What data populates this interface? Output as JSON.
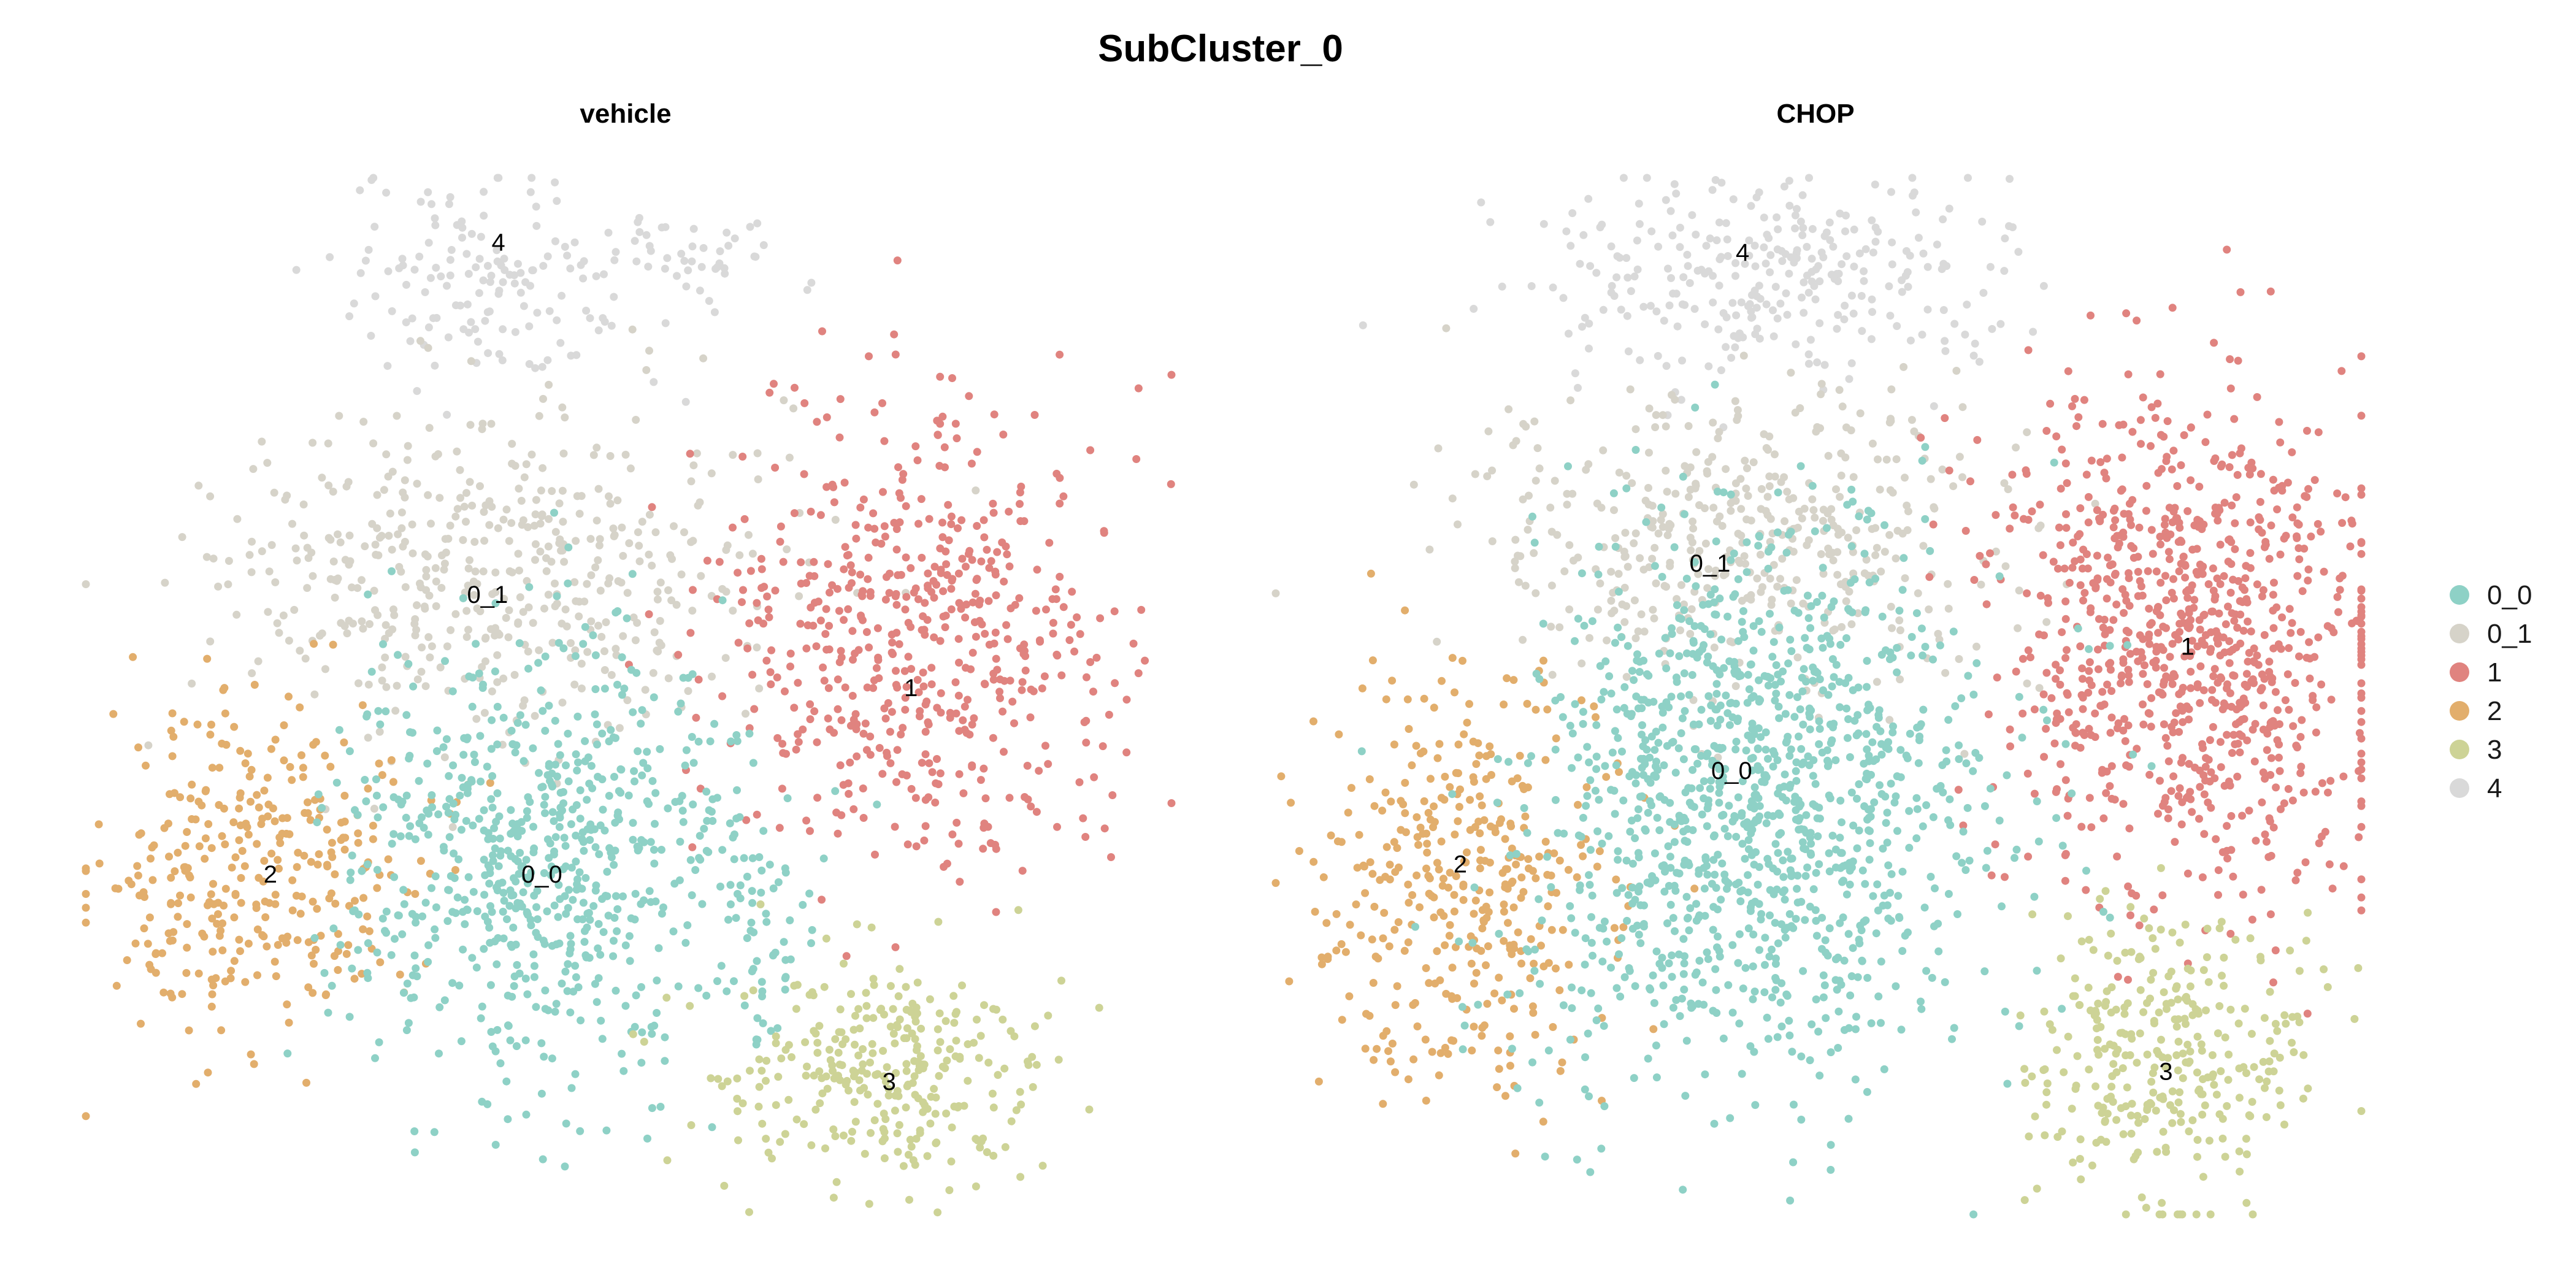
{
  "chart_data": {
    "type": "scatter",
    "title": "SubCluster_0",
    "xlabel": "",
    "ylabel": "",
    "grid": false,
    "axes_visible": false,
    "legend_position": "right",
    "clusters": [
      {
        "name": "0_0",
        "color": "#8ED1C6"
      },
      {
        "name": "0_1",
        "color": "#D6D3C9"
      },
      {
        "name": "1",
        "color": "#E0837F"
      },
      {
        "name": "2",
        "color": "#E2AE6C"
      },
      {
        "name": "3",
        "color": "#CDD396"
      },
      {
        "name": "4",
        "color": "#D9D9D9"
      }
    ],
    "panels": [
      {
        "title": "vehicle",
        "cluster_labels": [
          {
            "text": "4",
            "x": 0.38,
            "y": 0.93
          },
          {
            "text": "0_1",
            "x": 0.37,
            "y": 0.59
          },
          {
            "text": "1",
            "x": 0.76,
            "y": 0.5
          },
          {
            "text": "2",
            "x": 0.17,
            "y": 0.32
          },
          {
            "text": "0_0",
            "x": 0.42,
            "y": 0.32
          },
          {
            "text": "3",
            "x": 0.74,
            "y": 0.12
          }
        ],
        "groups": [
          {
            "cluster": "4",
            "cx": 0.38,
            "cy": 0.9,
            "sx": 0.07,
            "sy": 0.05,
            "n": 150
          },
          {
            "cluster": "4",
            "cx": 0.57,
            "cy": 0.93,
            "sx": 0.04,
            "sy": 0.02,
            "n": 40
          },
          {
            "cluster": "0_1",
            "cx": 0.37,
            "cy": 0.62,
            "sx": 0.13,
            "sy": 0.08,
            "n": 480
          },
          {
            "cluster": "1",
            "cx": 0.77,
            "cy": 0.56,
            "sx": 0.09,
            "sy": 0.11,
            "n": 560
          },
          {
            "cluster": "2",
            "cx": 0.16,
            "cy": 0.33,
            "sx": 0.07,
            "sy": 0.08,
            "n": 330
          },
          {
            "cluster": "0_0",
            "cx": 0.42,
            "cy": 0.35,
            "sx": 0.09,
            "sy": 0.11,
            "n": 700
          },
          {
            "cluster": "0_0",
            "cx": 0.62,
            "cy": 0.27,
            "sx": 0.02,
            "sy": 0.06,
            "n": 50
          },
          {
            "cluster": "3",
            "cx": 0.74,
            "cy": 0.14,
            "sx": 0.07,
            "sy": 0.06,
            "n": 300
          }
        ]
      },
      {
        "title": "CHOP",
        "cluster_labels": [
          {
            "text": "4",
            "x": 0.43,
            "y": 0.92
          },
          {
            "text": "0_1",
            "x": 0.4,
            "y": 0.62
          },
          {
            "text": "1",
            "x": 0.84,
            "y": 0.54
          },
          {
            "text": "2",
            "x": 0.17,
            "y": 0.33
          },
          {
            "text": "0_0",
            "x": 0.42,
            "y": 0.42
          },
          {
            "text": "3",
            "x": 0.82,
            "y": 0.13
          }
        ],
        "groups": [
          {
            "cluster": "4",
            "cx": 0.45,
            "cy": 0.9,
            "sx": 0.11,
            "sy": 0.05,
            "n": 300
          },
          {
            "cluster": "0_1",
            "cx": 0.43,
            "cy": 0.65,
            "sx": 0.12,
            "sy": 0.07,
            "n": 450
          },
          {
            "cluster": "1",
            "cx": 0.84,
            "cy": 0.55,
            "sx": 0.09,
            "sy": 0.12,
            "n": 900
          },
          {
            "cluster": "2",
            "cx": 0.17,
            "cy": 0.32,
            "sx": 0.07,
            "sy": 0.1,
            "n": 380
          },
          {
            "cluster": "0_0",
            "cx": 0.44,
            "cy": 0.4,
            "sx": 0.11,
            "sy": 0.13,
            "n": 1200
          },
          {
            "cluster": "3",
            "cx": 0.82,
            "cy": 0.15,
            "sx": 0.06,
            "sy": 0.07,
            "n": 320
          }
        ]
      }
    ]
  }
}
